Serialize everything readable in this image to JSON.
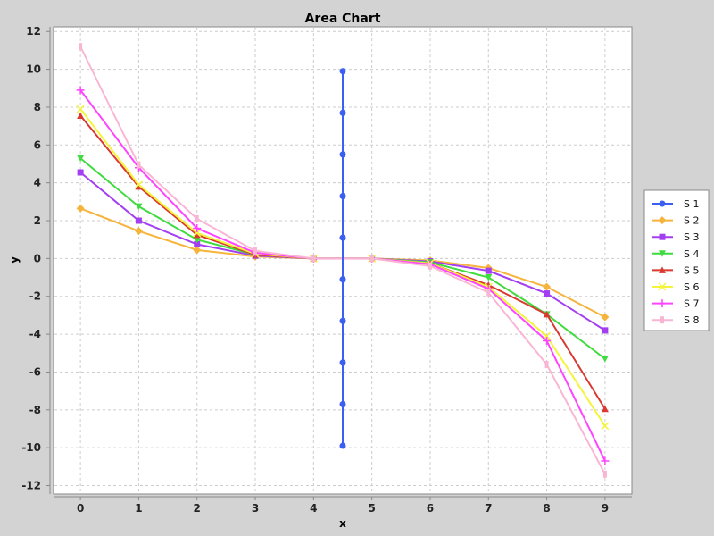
{
  "chart_data": {
    "type": "line",
    "title": "Area Chart",
    "xlabel": "x",
    "ylabel": "y",
    "xlim": [
      -0.4,
      9.4
    ],
    "ylim": [
      -12.4,
      12.2
    ],
    "x_ticks": [
      0,
      1,
      2,
      3,
      4,
      5,
      6,
      7,
      8,
      9
    ],
    "y_ticks": [
      -12,
      -10,
      -8,
      -6,
      -4,
      -2,
      0,
      2,
      4,
      6,
      8,
      10,
      12
    ],
    "grid": true,
    "legend_position": "right",
    "series": [
      {
        "name": "S 1",
        "color": "#3a5ff2",
        "marker": "circle",
        "x": [
          4.5,
          4.5,
          4.5,
          4.5,
          4.5,
          4.5,
          4.5,
          4.5,
          4.5,
          4.5
        ],
        "y": [
          9.9,
          7.7,
          5.5,
          3.3,
          1.1,
          -1.1,
          -3.3,
          -5.5,
          -7.7,
          -9.9
        ]
      },
      {
        "name": "S 2",
        "color": "#f6b43c",
        "marker": "diamond",
        "x": [
          0,
          1,
          2,
          3,
          4,
          5,
          6,
          7,
          8,
          9
        ],
        "y": [
          2.65,
          1.45,
          0.45,
          0.1,
          0,
          0,
          -0.1,
          -0.5,
          -1.5,
          -3.1
        ]
      },
      {
        "name": "S 3",
        "color": "#a33ef2",
        "marker": "square",
        "x": [
          0,
          1,
          2,
          3,
          4,
          5,
          6,
          7,
          8,
          9
        ],
        "y": [
          4.55,
          2.0,
          0.75,
          0.15,
          0,
          0,
          -0.15,
          -0.65,
          -1.85,
          -3.8
        ]
      },
      {
        "name": "S 4",
        "color": "#3fdb3f",
        "marker": "triangle-down",
        "x": [
          0,
          1,
          2,
          3,
          4,
          5,
          6,
          7,
          8,
          9
        ],
        "y": [
          5.3,
          2.75,
          1.0,
          0.2,
          0,
          0,
          -0.2,
          -1.0,
          -2.95,
          -5.3
        ]
      },
      {
        "name": "S 5",
        "color": "#d9392f",
        "marker": "triangle-up",
        "x": [
          0,
          1,
          2,
          3,
          4,
          5,
          6,
          7,
          8,
          9
        ],
        "y": [
          7.55,
          3.8,
          1.25,
          0.2,
          0,
          0,
          -0.25,
          -1.4,
          -2.95,
          -7.95
        ]
      },
      {
        "name": "S 6",
        "color": "#f4f43c",
        "marker": "x",
        "x": [
          0,
          1,
          2,
          3,
          4,
          5,
          6,
          7,
          8,
          9
        ],
        "y": [
          7.9,
          3.9,
          1.35,
          0.25,
          0,
          0,
          -0.25,
          -1.5,
          -4.1,
          -8.85
        ]
      },
      {
        "name": "S 7",
        "color": "#ff44ff",
        "marker": "plus",
        "x": [
          0,
          1,
          2,
          3,
          4,
          5,
          6,
          7,
          8,
          9
        ],
        "y": [
          8.9,
          4.8,
          1.6,
          0.3,
          0,
          0,
          -0.3,
          -1.6,
          -4.35,
          -10.7
        ]
      },
      {
        "name": "S 8",
        "color": "#f9b6d4",
        "marker": "bar",
        "x": [
          0,
          1,
          2,
          3,
          4,
          5,
          6,
          7,
          8,
          9
        ],
        "y": [
          11.2,
          4.95,
          2.1,
          0.4,
          0,
          0,
          -0.4,
          -1.8,
          -5.6,
          -11.4
        ]
      }
    ]
  }
}
